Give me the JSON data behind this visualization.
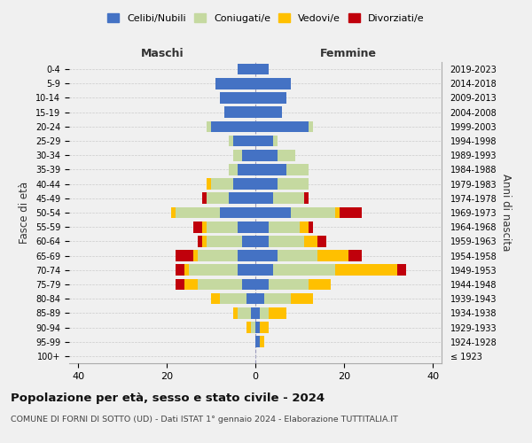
{
  "age_groups": [
    "100+",
    "95-99",
    "90-94",
    "85-89",
    "80-84",
    "75-79",
    "70-74",
    "65-69",
    "60-64",
    "55-59",
    "50-54",
    "45-49",
    "40-44",
    "35-39",
    "30-34",
    "25-29",
    "20-24",
    "15-19",
    "10-14",
    "5-9",
    "0-4"
  ],
  "birth_years": [
    "≤ 1923",
    "1924-1928",
    "1929-1933",
    "1934-1938",
    "1939-1943",
    "1944-1948",
    "1949-1953",
    "1954-1958",
    "1959-1963",
    "1964-1968",
    "1969-1973",
    "1974-1978",
    "1979-1983",
    "1984-1988",
    "1989-1993",
    "1994-1998",
    "1999-2003",
    "2004-2008",
    "2009-2013",
    "2014-2018",
    "2019-2023"
  ],
  "maschi_celibi": [
    0,
    0,
    0,
    1,
    2,
    3,
    4,
    4,
    3,
    4,
    8,
    6,
    5,
    4,
    3,
    5,
    10,
    7,
    8,
    9,
    4
  ],
  "maschi_coniugati": [
    0,
    0,
    1,
    3,
    6,
    10,
    11,
    9,
    8,
    7,
    10,
    5,
    5,
    2,
    2,
    1,
    1,
    0,
    0,
    0,
    0
  ],
  "maschi_vedovi": [
    0,
    0,
    1,
    1,
    2,
    3,
    1,
    1,
    1,
    1,
    1,
    0,
    1,
    0,
    0,
    0,
    0,
    0,
    0,
    0,
    0
  ],
  "maschi_divorziati": [
    0,
    0,
    0,
    0,
    0,
    2,
    2,
    4,
    1,
    2,
    0,
    1,
    0,
    0,
    0,
    0,
    0,
    0,
    0,
    0,
    0
  ],
  "femmine_celibi": [
    0,
    1,
    1,
    1,
    2,
    3,
    4,
    5,
    3,
    3,
    8,
    4,
    5,
    7,
    5,
    4,
    12,
    6,
    7,
    8,
    3
  ],
  "femmine_coniugati": [
    0,
    0,
    0,
    2,
    6,
    9,
    14,
    9,
    8,
    7,
    10,
    7,
    7,
    5,
    4,
    1,
    1,
    0,
    0,
    0,
    0
  ],
  "femmine_vedovi": [
    0,
    1,
    2,
    4,
    5,
    5,
    14,
    7,
    3,
    2,
    1,
    0,
    0,
    0,
    0,
    0,
    0,
    0,
    0,
    0,
    0
  ],
  "femmine_divorziati": [
    0,
    0,
    0,
    0,
    0,
    0,
    2,
    3,
    2,
    1,
    5,
    1,
    0,
    0,
    0,
    0,
    0,
    0,
    0,
    0,
    0
  ],
  "colors": {
    "celibi": "#4472c4",
    "coniugati": "#c5d9a0",
    "vedovi": "#ffc000",
    "divorziati": "#c0000b"
  },
  "xlim": 42,
  "title": "Popolazione per età, sesso e stato civile - 2024",
  "subtitle": "COMUNE DI FORNI DI SOTTO (UD) - Dati ISTAT 1° gennaio 2024 - Elaborazione TUTTITALIA.IT",
  "xlabel_left": "Maschi",
  "xlabel_right": "Femmine",
  "ylabel_left": "Fasce di età",
  "ylabel_right": "Anni di nascita",
  "legend_labels": [
    "Celibi/Nubili",
    "Coniugati/e",
    "Vedovi/e",
    "Divorziati/e"
  ],
  "bg_color": "#f0f0f0"
}
